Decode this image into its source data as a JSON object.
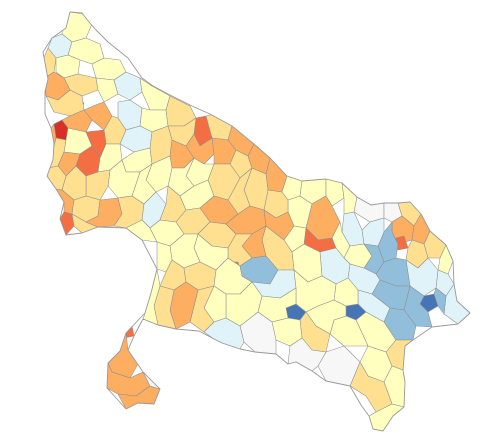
{
  "map": {
    "region_name": "",
    "palette": {
      "no_data": "#f7f7f7",
      "very_low": "#4575b4",
      "low": "#91bfdb",
      "below_mid": "#e0f3f8",
      "mid": "#ffffbf",
      "above_mid": "#fee090",
      "high": "#fdae61",
      "very_high": "#f46d43",
      "extreme": "#d73027"
    },
    "legend": {
      "visible": false,
      "title": ""
    }
  }
}
